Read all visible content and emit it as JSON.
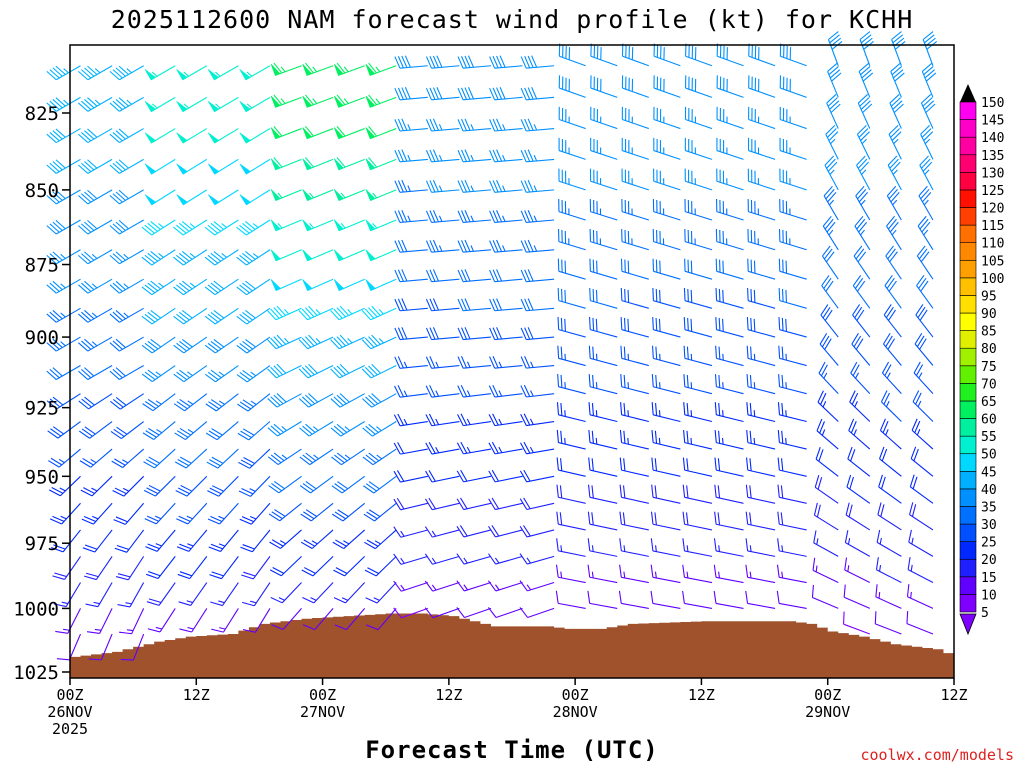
{
  "chart_data": {
    "type": "wind_barb_profile",
    "title": "2025112600 NAM forecast wind profile (kt) for KCHH",
    "xlabel": "Forecast Time (UTC)",
    "ylabel": "",
    "credit": "coolwx.com/models",
    "x_ticks": [
      {
        "hour": 0,
        "label": "00Z",
        "date": "26NOV",
        "year": "2025"
      },
      {
        "hour": 12,
        "label": "12Z",
        "date": "",
        "year": ""
      },
      {
        "hour": 24,
        "label": "00Z",
        "date": "27NOV",
        "year": ""
      },
      {
        "hour": 36,
        "label": "12Z",
        "date": "",
        "year": ""
      },
      {
        "hour": 48,
        "label": "00Z",
        "date": "28NOV",
        "year": ""
      },
      {
        "hour": 60,
        "label": "12Z",
        "date": "",
        "year": ""
      },
      {
        "hour": 72,
        "label": "00Z",
        "date": "29NOV",
        "year": ""
      },
      {
        "hour": 84,
        "label": "12Z",
        "date": "",
        "year": ""
      }
    ],
    "x_range_hours": [
      0,
      84
    ],
    "y_ticks": [
      {
        "value": 825,
        "label": "825"
      },
      {
        "value": 850,
        "label": "850"
      },
      {
        "value": 875,
        "label": "875"
      },
      {
        "value": 900,
        "label": "900"
      },
      {
        "value": 925,
        "label": "925"
      },
      {
        "value": 950,
        "label": "950"
      },
      {
        "value": 975,
        "label": "975"
      },
      {
        "value": 1000,
        "label": "1000"
      },
      {
        "value": 1025,
        "label": "1025"
      }
    ],
    "y_range_hpa": [
      800,
      1027
    ],
    "wind_speed_colorbar": {
      "unit": "kt",
      "levels": [
        5,
        10,
        15,
        20,
        25,
        30,
        35,
        40,
        45,
        50,
        55,
        60,
        65,
        70,
        75,
        80,
        85,
        90,
        95,
        100,
        105,
        110,
        115,
        120,
        125,
        130,
        135,
        140,
        145,
        150
      ],
      "labels": [
        "5",
        "10",
        "15",
        "20",
        "25",
        "30",
        "35",
        "40",
        "45",
        "50",
        "55",
        "60",
        "65",
        "70",
        "75",
        "80",
        "85",
        "90",
        "95",
        "100",
        "105",
        "110",
        "115",
        "120",
        "125",
        "130",
        "135",
        "140",
        "145",
        "150"
      ],
      "colors": [
        "#8000ff",
        "#6000ff",
        "#2020ff",
        "#0028ff",
        "#0050ff",
        "#0070ff",
        "#0090ff",
        "#00b0ff",
        "#00d8ff",
        "#00f0d0",
        "#00f0a0",
        "#00f060",
        "#20f020",
        "#60f000",
        "#a0f000",
        "#e0f000",
        "#ffff00",
        "#ffe000",
        "#ffc000",
        "#ffa000",
        "#ff8800",
        "#ff7000",
        "#ff4000",
        "#ff1000",
        "#ff0040",
        "#ff0070",
        "#ff00a0",
        "#ff00c8",
        "#ff00f0",
        "#ff40ff"
      ]
    },
    "surface_color": "#a0522d",
    "surface_pressure_hpa": [
      {
        "hour": 0,
        "p": 1019
      },
      {
        "hour": 4,
        "p": 1017
      },
      {
        "hour": 8,
        "p": 1013
      },
      {
        "hour": 11,
        "p": 1011
      },
      {
        "hour": 15,
        "p": 1010
      },
      {
        "hour": 18,
        "p": 1006
      },
      {
        "hour": 22,
        "p": 1004
      },
      {
        "hour": 26,
        "p": 1003
      },
      {
        "hour": 30,
        "p": 1002
      },
      {
        "hour": 33,
        "p": 1002
      },
      {
        "hour": 36,
        "p": 1003
      },
      {
        "hour": 38,
        "p": 1005
      },
      {
        "hour": 40,
        "p": 1007
      },
      {
        "hour": 45,
        "p": 1007
      },
      {
        "hour": 47,
        "p": 1008
      },
      {
        "hour": 50,
        "p": 1008
      },
      {
        "hour": 53,
        "p": 1006
      },
      {
        "hour": 60,
        "p": 1005
      },
      {
        "hour": 64,
        "p": 1005
      },
      {
        "hour": 68,
        "p": 1005
      },
      {
        "hour": 70,
        "p": 1006
      },
      {
        "hour": 72,
        "p": 1009
      },
      {
        "hour": 75,
        "p": 1011
      },
      {
        "hour": 78,
        "p": 1014
      },
      {
        "hour": 82,
        "p": 1016
      },
      {
        "hour": 84,
        "p": 1019
      }
    ],
    "wind_regimes": [
      {
        "hours": [
          0,
          10
        ],
        "low_levels_dir_deg": 200,
        "mid_levels_dir_deg": 240,
        "upper_dir_deg": 240,
        "max_speed_kt": 45
      },
      {
        "hours": [
          10,
          22
        ],
        "low_levels_dir_deg": 210,
        "mid_levels_dir_deg": 235,
        "upper_dir_deg": 240,
        "max_speed_kt": 55
      },
      {
        "hours": [
          22,
          34
        ],
        "low_levels_dir_deg": 220,
        "mid_levels_dir_deg": 245,
        "upper_dir_deg": 250,
        "max_speed_kt": 65
      },
      {
        "hours": [
          34,
          48
        ],
        "low_levels_dir_deg": 250,
        "mid_levels_dir_deg": 265,
        "upper_dir_deg": 265,
        "max_speed_kt": 40
      },
      {
        "hours": [
          48,
          72
        ],
        "low_levels_dir_deg": 280,
        "mid_levels_dir_deg": 285,
        "upper_dir_deg": 290,
        "max_speed_kt": 40
      },
      {
        "hours": [
          72,
          84
        ],
        "low_levels_dir_deg": 290,
        "mid_levels_dir_deg": 320,
        "upper_dir_deg": 340,
        "max_speed_kt": 40
      }
    ],
    "time_step_hours": 3,
    "level_step_hpa": 10
  }
}
